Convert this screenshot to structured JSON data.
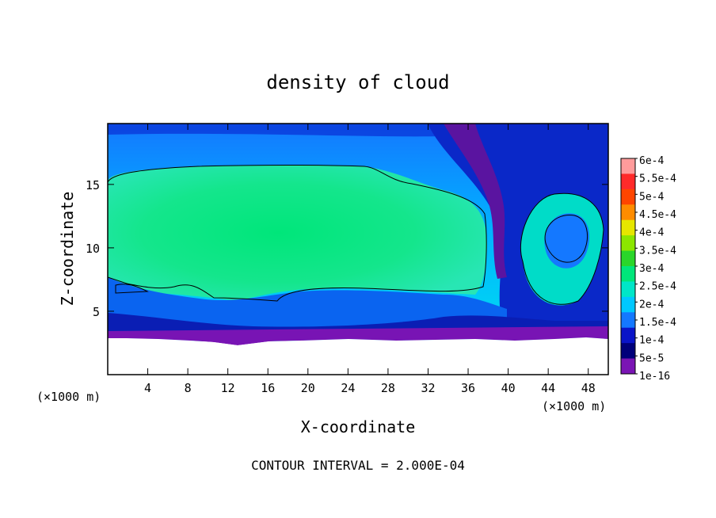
{
  "chart_data": {
    "type": "heatmap",
    "title": "density of cloud",
    "xlabel": "X-coordinate",
    "ylabel": "Z-coordinate",
    "x_unit_left": "(×1000 m)",
    "x_unit_right": "(×1000 m)",
    "footer": "CONTOUR INTERVAL = 2.000E-04",
    "xlim": [
      0,
      50
    ],
    "ylim": [
      0,
      19.8
    ],
    "x_ticks": [
      "4",
      "8",
      "12",
      "16",
      "20",
      "24",
      "28",
      "32",
      "36",
      "40",
      "44",
      "48"
    ],
    "x_tick_values": [
      4,
      8,
      12,
      16,
      20,
      24,
      28,
      32,
      36,
      40,
      44,
      48
    ],
    "y_ticks": [
      "5",
      "10",
      "15"
    ],
    "y_tick_values": [
      5,
      10,
      15
    ],
    "colorbar": {
      "labels": [
        "6e-4",
        "5.5e-4",
        "5e-4",
        "4.5e-4",
        "4e-4",
        "3.5e-4",
        "3e-4",
        "2.5e-4",
        "2e-4",
        "1.5e-4",
        "1e-4",
        "5e-5",
        "1e-16"
      ],
      "colors": [
        "#ff9b9b",
        "#ff2a2a",
        "#ff4500",
        "#ff8c00",
        "#e6e600",
        "#8ce600",
        "#2ad62a",
        "#00e67a",
        "#00e6c8",
        "#00c8ff",
        "#1478ff",
        "#0a14c8",
        "#00007a",
        "#7a14b4"
      ]
    },
    "cloud_region": {
      "contour_level": "2.000E-04",
      "top_z_approx": 16.6,
      "base_z_approx": 3.0,
      "core_x_range": [
        0,
        37
      ],
      "core_z_range": [
        6.5,
        16.5
      ]
    }
  }
}
